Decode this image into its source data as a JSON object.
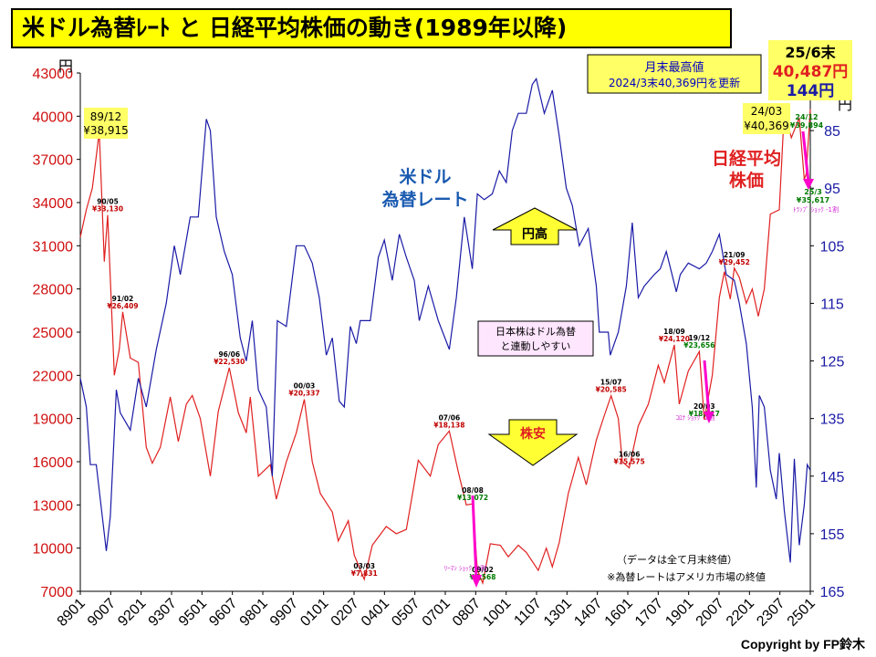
{
  "title": "米ドル為替ﾚｰﾄ と 日経平均株価の動き(1989年以降)",
  "copyright": "Copyright by FP鈴木",
  "axis": {
    "left_unit": "円",
    "right_unit": "円"
  },
  "colors": {
    "nikkei": "#e02020",
    "usdjpy": "#1a1aa6",
    "highlight": "#ffff66",
    "event": "#d020d0",
    "green": "#007a00"
  },
  "callouts": {
    "high_note_line1": "月末最高値",
    "high_note_line2": "2024/3末40,369円を更新",
    "latest_line1": "25/6末",
    "latest_line2": "40,487円",
    "latest_line3": "144円",
    "usd_label_line1": "米ドル",
    "usd_label_line2": "為替レート",
    "nikkei_label_line1": "日経平均",
    "nikkei_label_line2": "株価",
    "yen_high": "円高",
    "stock_low": "株安",
    "corr_line1": "日本株はドル為替",
    "corr_line2": "と連動しやすい",
    "note_line1": "（データは全て月末終値）",
    "note_line2": "※為替レートはアメリカ市場の終値",
    "peak_8912_date": "89/12",
    "peak_8912_value": "¥38,915",
    "peak_2403_date": "24/03",
    "peak_2403_value": "¥40,369",
    "peak_2412_date": "24/12",
    "peak_2412_value": "¥39,894",
    "pt_2503_date": "25/3",
    "pt_2503_value": "¥35,617",
    "trump_shock": "ﾄﾗﾝﾌﾟ ｼｮｯｸ -1割",
    "lehman_shock": "ﾘｰﾏﾝ ｼｮｯｸ -4割",
    "corona_shock": "ｺﾛﾅ ｼｮｯｸ -2割"
  },
  "annotations": [
    {
      "date": "90/05",
      "value": "¥33,130",
      "x": 1990.37,
      "y": 33130,
      "color": "red"
    },
    {
      "date": "91/02",
      "value": "¥26,409",
      "x": 1991.12,
      "y": 26409,
      "color": "red"
    },
    {
      "date": "96/06",
      "value": "¥22,530",
      "x": 1996.45,
      "y": 22530,
      "color": "red"
    },
    {
      "date": "00/03",
      "value": "¥20,337",
      "x": 2000.2,
      "y": 20337,
      "color": "red"
    },
    {
      "date": "03/03",
      "value": "¥7,831",
      "x": 2003.2,
      "y": 7831,
      "color": "red"
    },
    {
      "date": "07/06",
      "value": "¥18,138",
      "x": 2007.45,
      "y": 18138,
      "color": "red"
    },
    {
      "date": "08/08",
      "value": "¥13,072",
      "x": 2008.62,
      "y": 13072,
      "color": "green"
    },
    {
      "date": "09/02",
      "value": "¥7,568",
      "x": 2009.12,
      "y": 7568,
      "color": "green"
    },
    {
      "date": "15/07",
      "value": "¥20,585",
      "x": 2015.54,
      "y": 20585,
      "color": "red"
    },
    {
      "date": "16/06",
      "value": "¥15,575",
      "x": 2016.45,
      "y": 15575,
      "color": "red"
    },
    {
      "date": "18/09",
      "value": "¥24,120",
      "x": 2018.7,
      "y": 24120,
      "color": "red"
    },
    {
      "date": "19/12",
      "value": "¥23,656",
      "x": 2019.95,
      "y": 23656,
      "color": "green"
    },
    {
      "date": "20/03",
      "value": "¥18,917",
      "x": 2020.2,
      "y": 18917,
      "color": "green"
    },
    {
      "date": "21/09",
      "value": "¥29,452",
      "x": 2021.7,
      "y": 29452,
      "color": "red"
    }
  ],
  "chart_data": {
    "type": "line",
    "x_range": [
      1989.0,
      2025.5
    ],
    "x_ticks": [
      "8901",
      "9007",
      "9201",
      "9307",
      "9501",
      "9607",
      "9801",
      "9907",
      "0101",
      "0207",
      "0401",
      "0507",
      "0701",
      "0807",
      "1001",
      "1107",
      "1301",
      "1407",
      "1601",
      "1707",
      "1901",
      "2007",
      "2201",
      "2307",
      "2501"
    ],
    "left_axis": {
      "range": [
        7000,
        43000
      ],
      "ticks": [
        7000,
        10000,
        13000,
        16000,
        19000,
        22000,
        25000,
        28000,
        31000,
        34000,
        37000,
        40000,
        43000
      ]
    },
    "right_axis": {
      "range": [
        75,
        165
      ],
      "inverted": true,
      "ticks": [
        85,
        95,
        105,
        115,
        125,
        135,
        145,
        155,
        165
      ]
    },
    "series": [
      {
        "name": "日経平均株価",
        "axis": "left",
        "points": [
          [
            1989.0,
            31600
          ],
          [
            1989.3,
            33500
          ],
          [
            1989.6,
            35000
          ],
          [
            1989.95,
            38915
          ],
          [
            1990.2,
            29900
          ],
          [
            1990.37,
            33130
          ],
          [
            1990.7,
            22000
          ],
          [
            1990.95,
            23800
          ],
          [
            1991.12,
            26409
          ],
          [
            1991.5,
            23200
          ],
          [
            1991.9,
            22900
          ],
          [
            1992.3,
            17000
          ],
          [
            1992.6,
            15900
          ],
          [
            1993.0,
            17000
          ],
          [
            1993.5,
            20500
          ],
          [
            1993.9,
            17400
          ],
          [
            1994.3,
            20000
          ],
          [
            1994.6,
            20600
          ],
          [
            1995.0,
            19000
          ],
          [
            1995.5,
            15000
          ],
          [
            1995.9,
            19500
          ],
          [
            1996.45,
            22530
          ],
          [
            1996.9,
            19400
          ],
          [
            1997.3,
            18000
          ],
          [
            1997.5,
            20500
          ],
          [
            1997.9,
            15000
          ],
          [
            1998.5,
            15800
          ],
          [
            1998.8,
            13400
          ],
          [
            1999.3,
            16000
          ],
          [
            1999.8,
            18000
          ],
          [
            2000.2,
            20337
          ],
          [
            2000.6,
            16000
          ],
          [
            2001.0,
            13800
          ],
          [
            2001.6,
            12500
          ],
          [
            2001.9,
            10500
          ],
          [
            2002.4,
            11900
          ],
          [
            2002.7,
            9500
          ],
          [
            2003.2,
            7831
          ],
          [
            2003.6,
            10200
          ],
          [
            2004.3,
            11500
          ],
          [
            2004.8,
            11000
          ],
          [
            2005.3,
            11300
          ],
          [
            2005.9,
            16100
          ],
          [
            2006.5,
            15000
          ],
          [
            2006.9,
            17200
          ],
          [
            2007.45,
            18138
          ],
          [
            2007.9,
            15300
          ],
          [
            2008.3,
            13000
          ],
          [
            2008.62,
            13072
          ],
          [
            2008.85,
            8500
          ],
          [
            2009.12,
            7568
          ],
          [
            2009.5,
            10300
          ],
          [
            2010.0,
            10200
          ],
          [
            2010.4,
            9400
          ],
          [
            2010.9,
            10200
          ],
          [
            2011.3,
            9700
          ],
          [
            2011.9,
            8450
          ],
          [
            2012.3,
            10000
          ],
          [
            2012.6,
            8700
          ],
          [
            2012.95,
            10400
          ],
          [
            2013.4,
            13800
          ],
          [
            2013.9,
            16300
          ],
          [
            2014.3,
            14400
          ],
          [
            2014.8,
            17500
          ],
          [
            2015.2,
            19200
          ],
          [
            2015.54,
            20585
          ],
          [
            2015.9,
            19000
          ],
          [
            2016.1,
            16000
          ],
          [
            2016.45,
            15575
          ],
          [
            2016.9,
            18500
          ],
          [
            2017.4,
            20000
          ],
          [
            2017.9,
            22700
          ],
          [
            2018.2,
            21500
          ],
          [
            2018.7,
            24120
          ],
          [
            2018.95,
            20000
          ],
          [
            2019.4,
            22300
          ],
          [
            2019.95,
            23656
          ],
          [
            2020.2,
            18917
          ],
          [
            2020.6,
            22000
          ],
          [
            2020.95,
            27400
          ],
          [
            2021.2,
            29200
          ],
          [
            2021.5,
            27300
          ],
          [
            2021.7,
            29452
          ],
          [
            2021.95,
            28800
          ],
          [
            2022.3,
            27000
          ],
          [
            2022.6,
            28000
          ],
          [
            2022.9,
            26100
          ],
          [
            2023.2,
            28000
          ],
          [
            2023.5,
            33200
          ],
          [
            2023.95,
            33500
          ],
          [
            2024.2,
            40369
          ],
          [
            2024.55,
            38500
          ],
          [
            2024.95,
            39894
          ],
          [
            2025.2,
            35617
          ],
          [
            2025.3,
            36000
          ],
          [
            2025.5,
            40487
          ]
        ]
      },
      {
        "name": "米ドル為替レート",
        "axis": "right",
        "points": [
          [
            1989.0,
            128
          ],
          [
            1989.3,
            133
          ],
          [
            1989.5,
            143
          ],
          [
            1989.8,
            143
          ],
          [
            1990.3,
            158
          ],
          [
            1990.5,
            152
          ],
          [
            1990.8,
            130
          ],
          [
            1991.0,
            134
          ],
          [
            1991.5,
            137
          ],
          [
            1991.9,
            128
          ],
          [
            1992.3,
            133
          ],
          [
            1992.8,
            123
          ],
          [
            1993.3,
            115
          ],
          [
            1993.7,
            105
          ],
          [
            1994.0,
            110
          ],
          [
            1994.5,
            100
          ],
          [
            1994.9,
            100
          ],
          [
            1995.3,
            83
          ],
          [
            1995.5,
            85
          ],
          [
            1995.8,
            100
          ],
          [
            1996.2,
            106
          ],
          [
            1996.6,
            110
          ],
          [
            1997.0,
            121
          ],
          [
            1997.3,
            125
          ],
          [
            1997.6,
            118
          ],
          [
            1997.9,
            130
          ],
          [
            1998.3,
            133
          ],
          [
            1998.6,
            145
          ],
          [
            1998.85,
            118
          ],
          [
            1999.3,
            119
          ],
          [
            1999.8,
            105
          ],
          [
            2000.2,
            105
          ],
          [
            2000.6,
            108
          ],
          [
            2000.95,
            114
          ],
          [
            2001.3,
            124
          ],
          [
            2001.6,
            121
          ],
          [
            2001.95,
            132
          ],
          [
            2002.2,
            133
          ],
          [
            2002.5,
            119
          ],
          [
            2002.8,
            122
          ],
          [
            2003.0,
            118
          ],
          [
            2003.5,
            118
          ],
          [
            2003.9,
            107
          ],
          [
            2004.2,
            104
          ],
          [
            2004.6,
            111
          ],
          [
            2004.95,
            103
          ],
          [
            2005.3,
            107
          ],
          [
            2005.7,
            111
          ],
          [
            2005.95,
            118
          ],
          [
            2006.4,
            112
          ],
          [
            2006.9,
            118
          ],
          [
            2007.45,
            123
          ],
          [
            2007.8,
            114
          ],
          [
            2008.2,
            100
          ],
          [
            2008.6,
            109
          ],
          [
            2008.85,
            96
          ],
          [
            2009.2,
            97
          ],
          [
            2009.6,
            96
          ],
          [
            2009.95,
            92
          ],
          [
            2010.3,
            94
          ],
          [
            2010.6,
            85
          ],
          [
            2010.9,
            82
          ],
          [
            2011.3,
            82
          ],
          [
            2011.6,
            77
          ],
          [
            2011.8,
            76
          ],
          [
            2012.2,
            82
          ],
          [
            2012.6,
            78
          ],
          [
            2012.95,
            86
          ],
          [
            2013.3,
            95
          ],
          [
            2013.6,
            98
          ],
          [
            2013.95,
            105
          ],
          [
            2014.4,
            102
          ],
          [
            2014.8,
            112
          ],
          [
            2014.95,
            120
          ],
          [
            2015.4,
            120
          ],
          [
            2015.5,
            124
          ],
          [
            2015.9,
            120
          ],
          [
            2016.3,
            112
          ],
          [
            2016.6,
            101
          ],
          [
            2016.9,
            114
          ],
          [
            2017.2,
            112
          ],
          [
            2017.7,
            110
          ],
          [
            2018.0,
            109
          ],
          [
            2018.3,
            106
          ],
          [
            2018.8,
            113
          ],
          [
            2019.0,
            110
          ],
          [
            2019.4,
            108
          ],
          [
            2019.95,
            109
          ],
          [
            2020.3,
            108
          ],
          [
            2020.6,
            106
          ],
          [
            2020.95,
            103
          ],
          [
            2021.3,
            110
          ],
          [
            2021.7,
            111
          ],
          [
            2021.95,
            115
          ],
          [
            2022.3,
            122
          ],
          [
            2022.6,
            133
          ],
          [
            2022.8,
            147
          ],
          [
            2022.95,
            131
          ],
          [
            2023.2,
            133
          ],
          [
            2023.5,
            144
          ],
          [
            2023.8,
            149
          ],
          [
            2023.95,
            141
          ],
          [
            2024.2,
            151
          ],
          [
            2024.5,
            160
          ],
          [
            2024.7,
            142
          ],
          [
            2024.95,
            157
          ],
          [
            2025.2,
            150
          ],
          [
            2025.35,
            143
          ],
          [
            2025.5,
            144
          ]
        ]
      }
    ]
  }
}
